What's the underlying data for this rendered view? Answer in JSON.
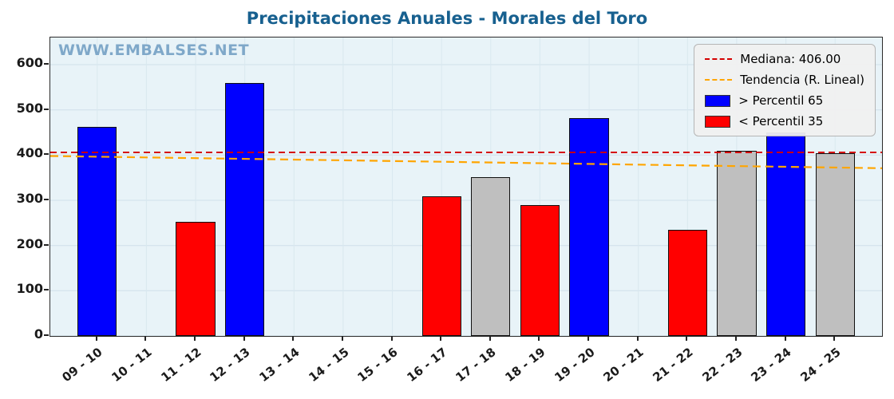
{
  "title": "Precipitaciones Anuales - Morales del Toro",
  "watermark": "WWW.EMBALSES.NET",
  "legend": {
    "items": [
      {
        "type": "dashed-line",
        "label": "Mediana: 406.00"
      },
      {
        "type": "dashed-line",
        "label": "Tendencia (R. Lineal)"
      },
      {
        "type": "patch",
        "label": "> Percentil 65"
      },
      {
        "type": "patch",
        "label": "< Percentil 35"
      }
    ]
  },
  "colors": {
    "title": "#17608f",
    "watermark": "#7fa8c9",
    "plot_background": "#e8f3f8",
    "percentil65_blue": "#0000ff",
    "percentil35_red": "#ff0000",
    "middle_gray": "#bfbfbf",
    "median_line": "#d40000",
    "trend_line": "#ffa500"
  },
  "chart_data": {
    "type": "bar",
    "title": "Precipitaciones Anuales - Morales del Toro",
    "categories": [
      "09 - 10",
      "10 - 11",
      "11 - 12",
      "12 - 13",
      "13 - 14",
      "14 - 15",
      "15 - 16",
      "16 - 17",
      "17 - 18",
      "18 - 19",
      "19 - 20",
      "20 - 21",
      "21 - 22",
      "22 - 23",
      "23 - 24",
      "24 - 25"
    ],
    "values": [
      462,
      null,
      252,
      560,
      null,
      null,
      null,
      308,
      352,
      290,
      482,
      null,
      235,
      410,
      450,
      405
    ],
    "bar_colors": [
      "blue",
      null,
      "red",
      "blue",
      null,
      null,
      null,
      "red",
      "gray",
      "red",
      "blue",
      null,
      "red",
      "gray",
      "blue",
      "gray"
    ],
    "median": 406.0,
    "trend_line": {
      "left_value": 398,
      "right_value": 371
    },
    "yticks": [
      0,
      100,
      200,
      300,
      400,
      500,
      600
    ],
    "ylim": [
      0,
      660
    ],
    "grid": true,
    "legend_position": "upper right",
    "legend_entries": [
      "Mediana: 406.00",
      "Tendencia (R. Lineal)",
      "> Percentil 65",
      "< Percentil 35"
    ]
  }
}
